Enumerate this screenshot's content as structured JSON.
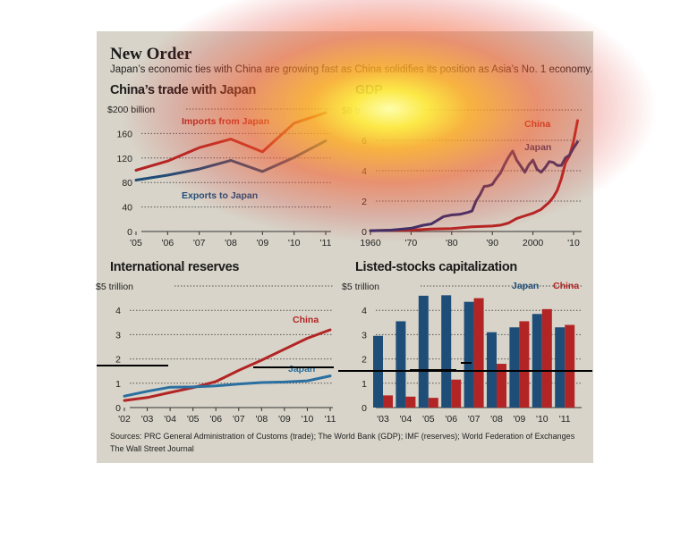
{
  "header": {
    "title": "New Order",
    "subtitle": "Japan’s economic ties with China are growing fast as China solidifies its position as Asia’s No. 1 economy."
  },
  "footer": {
    "sources": "Sources: PRC General Administration of Customs (trade); The World Bank (GDP); IMF (reserves); World Federation of Exchanges",
    "credit": "The Wall Street Journal"
  },
  "colors": {
    "japan": "#1e4d78",
    "china": "#b32424",
    "background": "#d8d4c9"
  },
  "chart_data": [
    {
      "type": "line",
      "title": "China’s trade with Japan",
      "x_tick_labels": [
        "'05",
        "'06",
        "'07",
        "'08",
        "'09",
        "'10",
        "'11"
      ],
      "y_tick_labels": [
        "0",
        "40",
        "80",
        "120",
        "160",
        "$200 billion"
      ],
      "ylim": [
        0,
        200
      ],
      "grid": true,
      "x": [
        2005,
        2006,
        2007,
        2008,
        2009,
        2010,
        2011
      ],
      "series": [
        {
          "name": "Imports from Japan",
          "color": "#b32424",
          "values": [
            100,
            115,
            137,
            151,
            130,
            177,
            194
          ]
        },
        {
          "name": "Exports to Japan",
          "color": "#1e4d78",
          "values": [
            84,
            92,
            102,
            116,
            98,
            121,
            148
          ]
        }
      ]
    },
    {
      "type": "line",
      "title": "GDP",
      "x_tick_labels": [
        "1960",
        "'70",
        "'80",
        "'90",
        "2000",
        "'10"
      ],
      "y_tick_labels": [
        "0",
        "2",
        "4",
        "6",
        "$8 tr"
      ],
      "ylim": [
        0,
        8
      ],
      "grid": true,
      "series": [
        {
          "name": "China",
          "color": "#b32424",
          "x": [
            1960,
            1965,
            1970,
            1975,
            1980,
            1985,
            1990,
            1992,
            1994,
            1996,
            1998,
            2000,
            2002,
            2004,
            2005,
            2006,
            2007,
            2008,
            2009,
            2010,
            2011
          ],
          "values": [
            0.06,
            0.07,
            0.09,
            0.16,
            0.19,
            0.31,
            0.36,
            0.42,
            0.56,
            0.86,
            1.03,
            1.2,
            1.45,
            1.93,
            2.26,
            2.71,
            3.49,
            4.52,
            4.99,
            5.93,
            7.3
          ]
        },
        {
          "name": "Japan",
          "color": "#2f2f6e",
          "x": [
            1960,
            1965,
            1970,
            1973,
            1975,
            1978,
            1980,
            1982,
            1984,
            1985,
            1986,
            1987,
            1988,
            1989,
            1990,
            1991,
            1992,
            1993,
            1994,
            1995,
            1996,
            1997,
            1998,
            1999,
            2000,
            2001,
            2002,
            2003,
            2004,
            2005,
            2006,
            2007,
            2008,
            2009,
            2010,
            2011
          ],
          "values": [
            0.04,
            0.09,
            0.21,
            0.41,
            0.5,
            0.98,
            1.09,
            1.13,
            1.26,
            1.35,
            2.0,
            2.44,
            2.97,
            3.0,
            3.1,
            3.5,
            3.85,
            4.4,
            4.9,
            5.3,
            4.7,
            4.3,
            3.9,
            4.4,
            4.7,
            4.1,
            3.9,
            4.2,
            4.6,
            4.55,
            4.35,
            4.35,
            4.85,
            5.03,
            5.5,
            5.9
          ]
        }
      ],
      "annotations": [
        "China",
        "Japan"
      ]
    },
    {
      "type": "line",
      "title": "International reserves",
      "x_tick_labels": [
        "'02",
        "'03",
        "'04",
        "'05",
        "'06",
        "'07",
        "'08",
        "'09",
        "'10",
        "'11"
      ],
      "y_tick_labels": [
        "0",
        "1",
        "2",
        "3",
        "4",
        "$5 trillion"
      ],
      "ylim": [
        0,
        5
      ],
      "grid": true,
      "x": [
        2002,
        2003,
        2004,
        2005,
        2006,
        2007,
        2008,
        2009,
        2010,
        2011
      ],
      "series": [
        {
          "name": "China",
          "color": "#b32424",
          "values": [
            0.29,
            0.41,
            0.62,
            0.82,
            1.07,
            1.53,
            1.95,
            2.4,
            2.85,
            3.2
          ]
        },
        {
          "name": "Japan",
          "color": "#2a6fa0",
          "values": [
            0.47,
            0.67,
            0.84,
            0.85,
            0.89,
            0.97,
            1.03,
            1.05,
            1.1,
            1.3
          ]
        }
      ]
    },
    {
      "type": "bar",
      "title": "Listed-stocks capitalization",
      "categories": [
        "'03",
        "'04",
        "'05",
        "'06",
        "'07",
        "'08",
        "'09",
        "'10",
        "'11"
      ],
      "y_tick_labels": [
        "0",
        "1",
        "2",
        "3",
        "4",
        "$5 trillion"
      ],
      "ylim": [
        0,
        5
      ],
      "grid": true,
      "legend": "top-right",
      "series": [
        {
          "name": "Japan",
          "color": "#1e4d78",
          "values": [
            2.95,
            3.55,
            4.6,
            4.62,
            4.35,
            3.1,
            3.3,
            3.85,
            3.3
          ]
        },
        {
          "name": "China",
          "color": "#b32424",
          "values": [
            0.5,
            0.45,
            0.4,
            1.15,
            4.5,
            1.8,
            3.55,
            4.05,
            3.4
          ]
        }
      ]
    }
  ]
}
